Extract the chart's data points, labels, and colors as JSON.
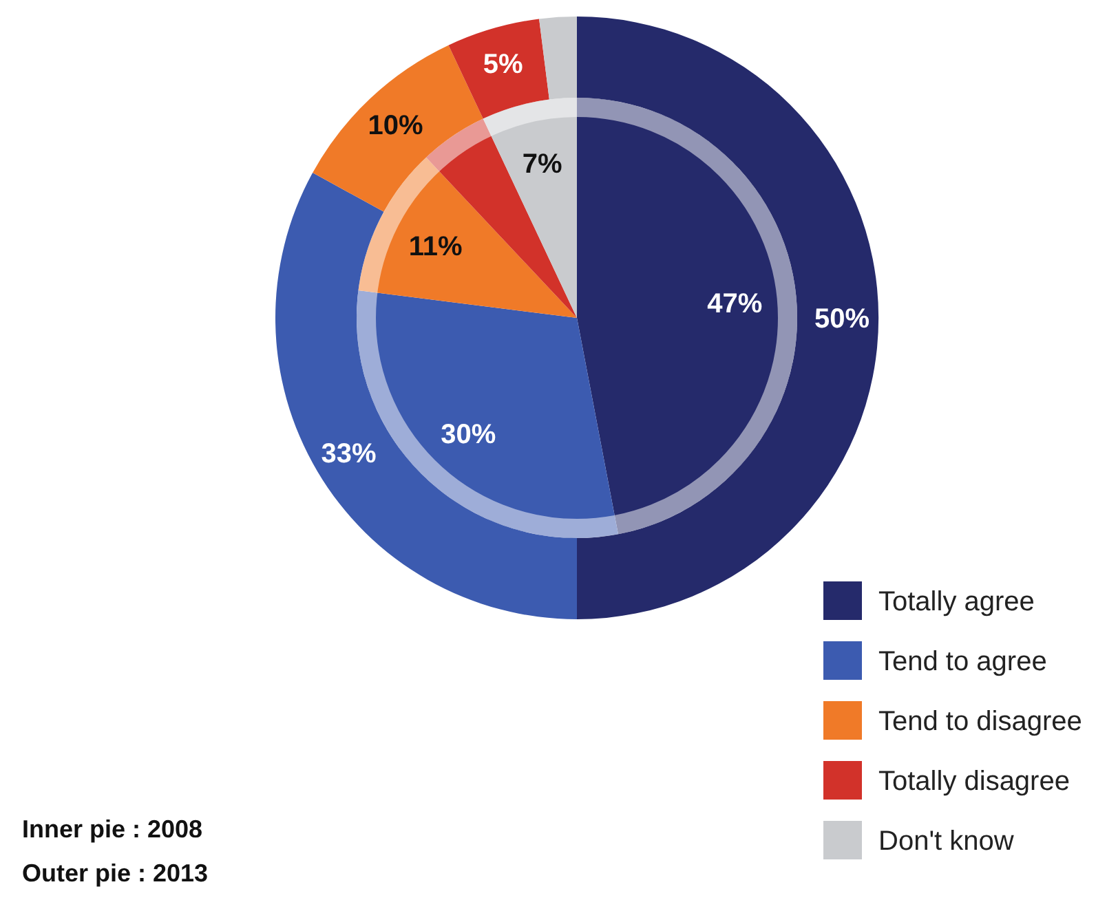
{
  "chart_data": {
    "type": "pie",
    "categories": [
      "Totally agree",
      "Tend to agree",
      "Tend to disagree",
      "Totally disagree",
      "Don't know"
    ],
    "colors": [
      "#252a6b",
      "#3c5bb0",
      "#f07a28",
      "#d2322a",
      "#c9cbce"
    ],
    "series": [
      {
        "values": [
          47,
          30,
          11,
          5,
          7
        ],
        "value_labels": [
          "47%",
          "30%",
          "11%",
          null,
          "7%"
        ]
      },
      {
        "values": [
          50,
          33,
          10,
          5,
          2
        ],
        "value_labels": [
          "50%",
          "33%",
          "10%",
          "5%",
          null
        ]
      }
    ],
    "legend": "bottom right",
    "annotations": [
      "Inner pie : 2008",
      "Outer pie : 2013"
    ]
  }
}
